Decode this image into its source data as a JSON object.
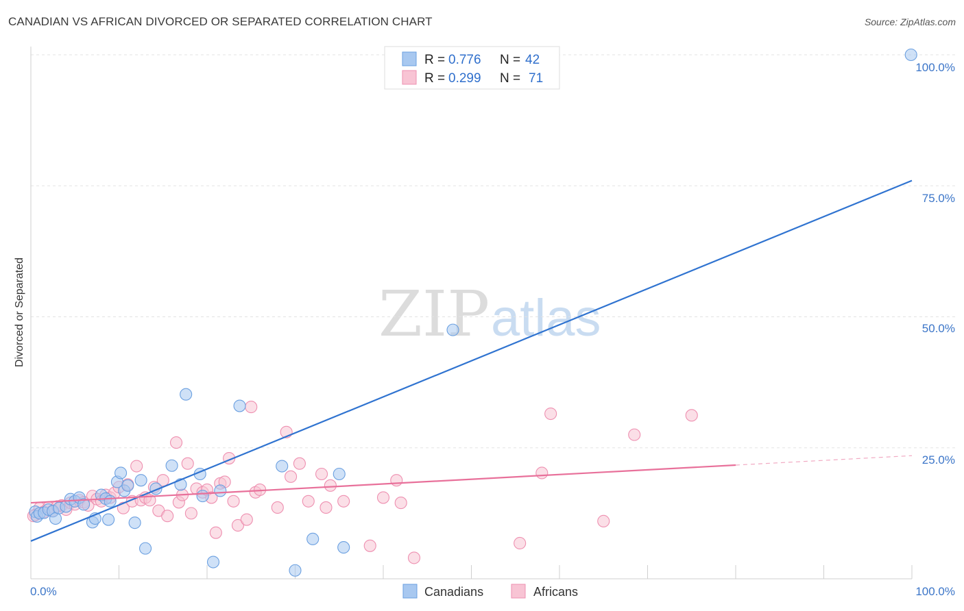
{
  "title": "CANADIAN VS AFRICAN DIVORCED OR SEPARATED CORRELATION CHART",
  "source": "Source: ZipAtlas.com",
  "watermark": {
    "part1": "ZIP",
    "part2": "atlas"
  },
  "legend": {
    "r_label": "R =",
    "n_label": "N =",
    "rows": [
      {
        "r": "0.776",
        "n": "42",
        "color": "#a8c8f0",
        "stroke": "#6a9fe0"
      },
      {
        "r": "0.299",
        "n": "71",
        "color": "#f8c4d4",
        "stroke": "#ee8fb0"
      }
    ]
  },
  "bottom_legend": [
    "Canadians",
    "Africans"
  ],
  "chart_data": {
    "type": "scatter",
    "xlabel": "",
    "ylabel": "Divorced or Separated",
    "xlim": [
      0,
      100
    ],
    "ylim": [
      0,
      100
    ],
    "x_tick_labels": [
      "0.0%",
      "100.0%"
    ],
    "y_tick_labels": [
      "25.0%",
      "50.0%",
      "75.0%",
      "100.0%"
    ],
    "y_ticks": [
      25,
      50,
      75,
      100
    ],
    "series": [
      {
        "name": "Canadians",
        "color": "#a8c8f0",
        "stroke": "#6a9fe0",
        "line_color": "#2f73d0",
        "trend": {
          "x0": 0,
          "y0": 7.2,
          "x1": 100,
          "y1": 76.0
        },
        "points": [
          [
            0.5,
            12.8
          ],
          [
            0.7,
            11.9
          ],
          [
            1.0,
            12.5
          ],
          [
            1.5,
            12.6
          ],
          [
            2.0,
            13.2
          ],
          [
            2.5,
            12.9
          ],
          [
            2.8,
            11.5
          ],
          [
            3.2,
            13.5
          ],
          [
            4.0,
            13.8
          ],
          [
            4.5,
            15.2
          ],
          [
            5.0,
            14.8
          ],
          [
            5.5,
            15.5
          ],
          [
            6.0,
            14.2
          ],
          [
            7.0,
            10.8
          ],
          [
            7.3,
            11.5
          ],
          [
            8.0,
            16.0
          ],
          [
            8.5,
            15.3
          ],
          [
            8.8,
            11.3
          ],
          [
            9.0,
            14.8
          ],
          [
            9.8,
            18.5
          ],
          [
            10.2,
            20.2
          ],
          [
            10.6,
            16.8
          ],
          [
            11.0,
            17.8
          ],
          [
            11.8,
            10.7
          ],
          [
            12.5,
            18.8
          ],
          [
            13.0,
            5.8
          ],
          [
            14.2,
            17.2
          ],
          [
            16.0,
            21.6
          ],
          [
            17.0,
            18.0
          ],
          [
            17.6,
            35.2
          ],
          [
            19.2,
            20.0
          ],
          [
            19.5,
            15.8
          ],
          [
            20.7,
            3.2
          ],
          [
            21.5,
            16.8
          ],
          [
            23.7,
            33.0
          ],
          [
            28.5,
            21.5
          ],
          [
            30.0,
            1.6
          ],
          [
            32.0,
            7.6
          ],
          [
            35.0,
            20.0
          ],
          [
            35.5,
            6.0
          ],
          [
            47.9,
            47.5
          ],
          [
            99.9,
            100.0
          ]
        ]
      },
      {
        "name": "Africans",
        "color": "#f8c4d4",
        "stroke": "#ee8fb0",
        "line_color": "#e8709a",
        "trend": {
          "x0": 0,
          "y0": 14.5,
          "x1": 80,
          "y1": 21.7,
          "dash_x1": 100,
          "dash_y1": 23.5
        },
        "points": [
          [
            0.5,
            12.2
          ],
          [
            1.0,
            13.5
          ],
          [
            1.5,
            12.8
          ],
          [
            2.0,
            13.6
          ],
          [
            2.5,
            13.0
          ],
          [
            3.0,
            13.8
          ],
          [
            3.5,
            14.0
          ],
          [
            4.0,
            13.2
          ],
          [
            4.5,
            14.5
          ],
          [
            5.0,
            14.2
          ],
          [
            5.5,
            15.0
          ],
          [
            6.0,
            14.6
          ],
          [
            6.5,
            14.0
          ],
          [
            7.0,
            15.8
          ],
          [
            7.5,
            15.2
          ],
          [
            8.0,
            14.8
          ],
          [
            8.5,
            16.0
          ],
          [
            9.0,
            15.5
          ],
          [
            9.5,
            16.4
          ],
          [
            10.0,
            17.5
          ],
          [
            10.5,
            13.5
          ],
          [
            11.0,
            18.0
          ],
          [
            11.5,
            14.8
          ],
          [
            12.0,
            21.5
          ],
          [
            12.5,
            15.0
          ],
          [
            13.0,
            15.5
          ],
          [
            13.5,
            15.0
          ],
          [
            14.0,
            17.5
          ],
          [
            14.5,
            13.0
          ],
          [
            15.0,
            18.8
          ],
          [
            15.5,
            12.0
          ],
          [
            16.5,
            26.0
          ],
          [
            16.8,
            14.6
          ],
          [
            17.2,
            16.0
          ],
          [
            17.8,
            22.0
          ],
          [
            18.2,
            12.5
          ],
          [
            18.8,
            17.2
          ],
          [
            19.5,
            16.5
          ],
          [
            20.0,
            17.0
          ],
          [
            20.5,
            15.5
          ],
          [
            21.0,
            8.8
          ],
          [
            21.5,
            18.2
          ],
          [
            22.0,
            18.5
          ],
          [
            22.5,
            23.0
          ],
          [
            23.0,
            14.8
          ],
          [
            23.5,
            10.2
          ],
          [
            24.5,
            11.3
          ],
          [
            25.0,
            32.8
          ],
          [
            25.5,
            16.5
          ],
          [
            26.0,
            17.0
          ],
          [
            28.0,
            13.6
          ],
          [
            29.0,
            28.0
          ],
          [
            29.5,
            19.5
          ],
          [
            30.5,
            22.0
          ],
          [
            31.5,
            14.8
          ],
          [
            33.0,
            20.0
          ],
          [
            33.5,
            13.6
          ],
          [
            34.0,
            17.8
          ],
          [
            35.5,
            14.8
          ],
          [
            38.5,
            6.3
          ],
          [
            40.0,
            15.5
          ],
          [
            41.5,
            18.8
          ],
          [
            42.0,
            14.5
          ],
          [
            43.5,
            4.0
          ],
          [
            55.5,
            6.8
          ],
          [
            58.0,
            20.2
          ],
          [
            59.0,
            31.5
          ],
          [
            65.0,
            11.0
          ],
          [
            68.5,
            27.5
          ],
          [
            75.0,
            31.2
          ],
          [
            0.3,
            12.0
          ]
        ]
      }
    ]
  }
}
